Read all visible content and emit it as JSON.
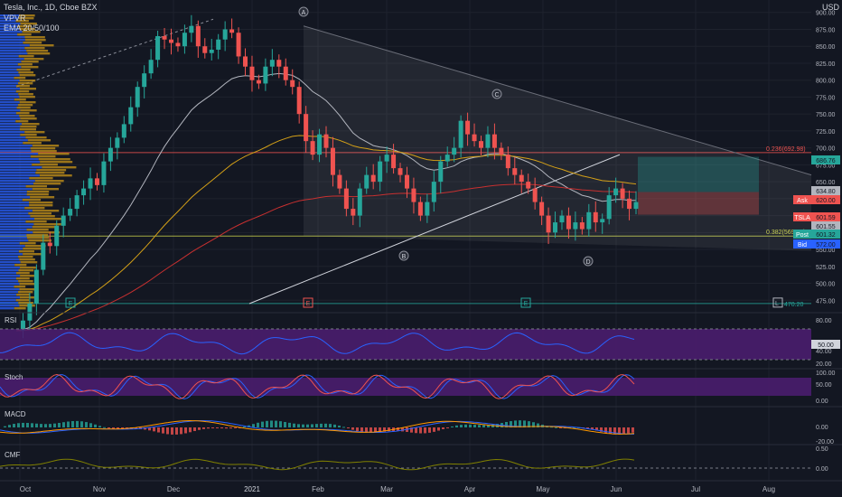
{
  "header": {
    "symbol_line": "Tesla, Inc., 1D, Cboe BZX",
    "currency": "USD",
    "indicators": [
      "VPVR",
      "EMA 20/50/100"
    ]
  },
  "colors": {
    "background": "#131722",
    "up": "#26a69a",
    "down": "#ef5350",
    "grid": "#1e222d",
    "axis_text": "#b2b5be",
    "vp_up": "#2962ff",
    "vp_down": "#c89418",
    "ema20": "#b2b5be",
    "ema50": "#d4a017",
    "ema100": "#c83030",
    "osc_fill": "#4a1d6e",
    "rsi_line": "#2962ff",
    "stoch_k": "#2962ff",
    "stoch_d": "#ef5350",
    "cmf_line": "#808000"
  },
  "chart_data": {
    "type": "candlestick",
    "price_axis": {
      "range": [
        462,
        905
      ],
      "ticks": [
        900,
        875,
        850,
        825,
        800,
        775,
        750,
        725,
        700,
        675,
        650,
        625,
        600,
        575,
        550,
        525,
        500,
        475
      ]
    },
    "time_axis": [
      "Oct",
      "Nov",
      "Dec",
      "2021",
      "Feb",
      "Mar",
      "Apr",
      "May",
      "Jun",
      "Jul",
      "Aug"
    ],
    "closes": [
      430,
      445,
      470,
      520,
      560,
      555,
      585,
      600,
      610,
      630,
      640,
      655,
      645,
      680,
      700,
      715,
      735,
      760,
      790,
      810,
      830,
      865,
      860,
      855,
      850,
      870,
      880,
      850,
      840,
      845,
      860,
      875,
      870,
      835,
      820,
      800,
      795,
      820,
      830,
      820,
      800,
      790,
      750,
      710,
      690,
      720,
      700,
      660,
      640,
      610,
      600,
      640,
      660,
      650,
      680,
      690,
      670,
      660,
      640,
      620,
      600,
      620,
      650,
      680,
      690,
      700,
      740,
      720,
      710,
      700,
      720,
      700,
      690,
      670,
      660,
      650,
      640,
      620,
      600,
      575,
      590,
      600,
      580,
      590,
      580,
      605,
      590,
      595,
      630,
      640,
      625,
      610,
      620
    ],
    "levels": [
      {
        "label": "0.236(692.98)",
        "value": 692.98,
        "color": "#ef5350"
      },
      {
        "label": "0.382(569.75)",
        "value": 569.75,
        "color": "#c8d04a"
      },
      {
        "label": "L (470.20)",
        "value": 470.2,
        "color": "#26a69a"
      }
    ],
    "price_tags": [
      {
        "text": "686.76",
        "value": 686.76,
        "color": "#26a69a"
      },
      {
        "text": "634.80",
        "value": 634.8,
        "color": "#b2b5be"
      },
      {
        "text": "620.00",
        "value": 620.0,
        "color": "#ef5350"
      },
      {
        "text": "601.59",
        "value": 601.59,
        "color": "#ef5350"
      },
      {
        "text": "601.55",
        "value": 601.55,
        "color": "#b2b5be"
      },
      {
        "text": "601.32",
        "value": 601.32,
        "color": "#26a69a"
      },
      {
        "text": "572.00",
        "value": 572.0,
        "color": "#2962ff"
      }
    ],
    "side_labels": [
      "Ask",
      "TSLA",
      "Post",
      "Bid"
    ],
    "pattern_points": [
      "A",
      "B",
      "C",
      "D"
    ],
    "event_markers": [
      "E",
      "E",
      "E",
      "L"
    ]
  },
  "panes": {
    "rsi": {
      "label": "RSI",
      "ticks": [
        "80.00",
        "50.00",
        "40.00",
        "20.00"
      ],
      "value_tag": "50.00"
    },
    "stoch": {
      "label": "Stoch",
      "ticks": [
        "100.00",
        "50.00",
        "0.00"
      ]
    },
    "macd": {
      "label": "MACD",
      "ticks": [
        "0.00",
        "-20.00"
      ]
    },
    "cmf": {
      "label": "CMF",
      "ticks": [
        "0.50",
        "0.00"
      ]
    }
  }
}
